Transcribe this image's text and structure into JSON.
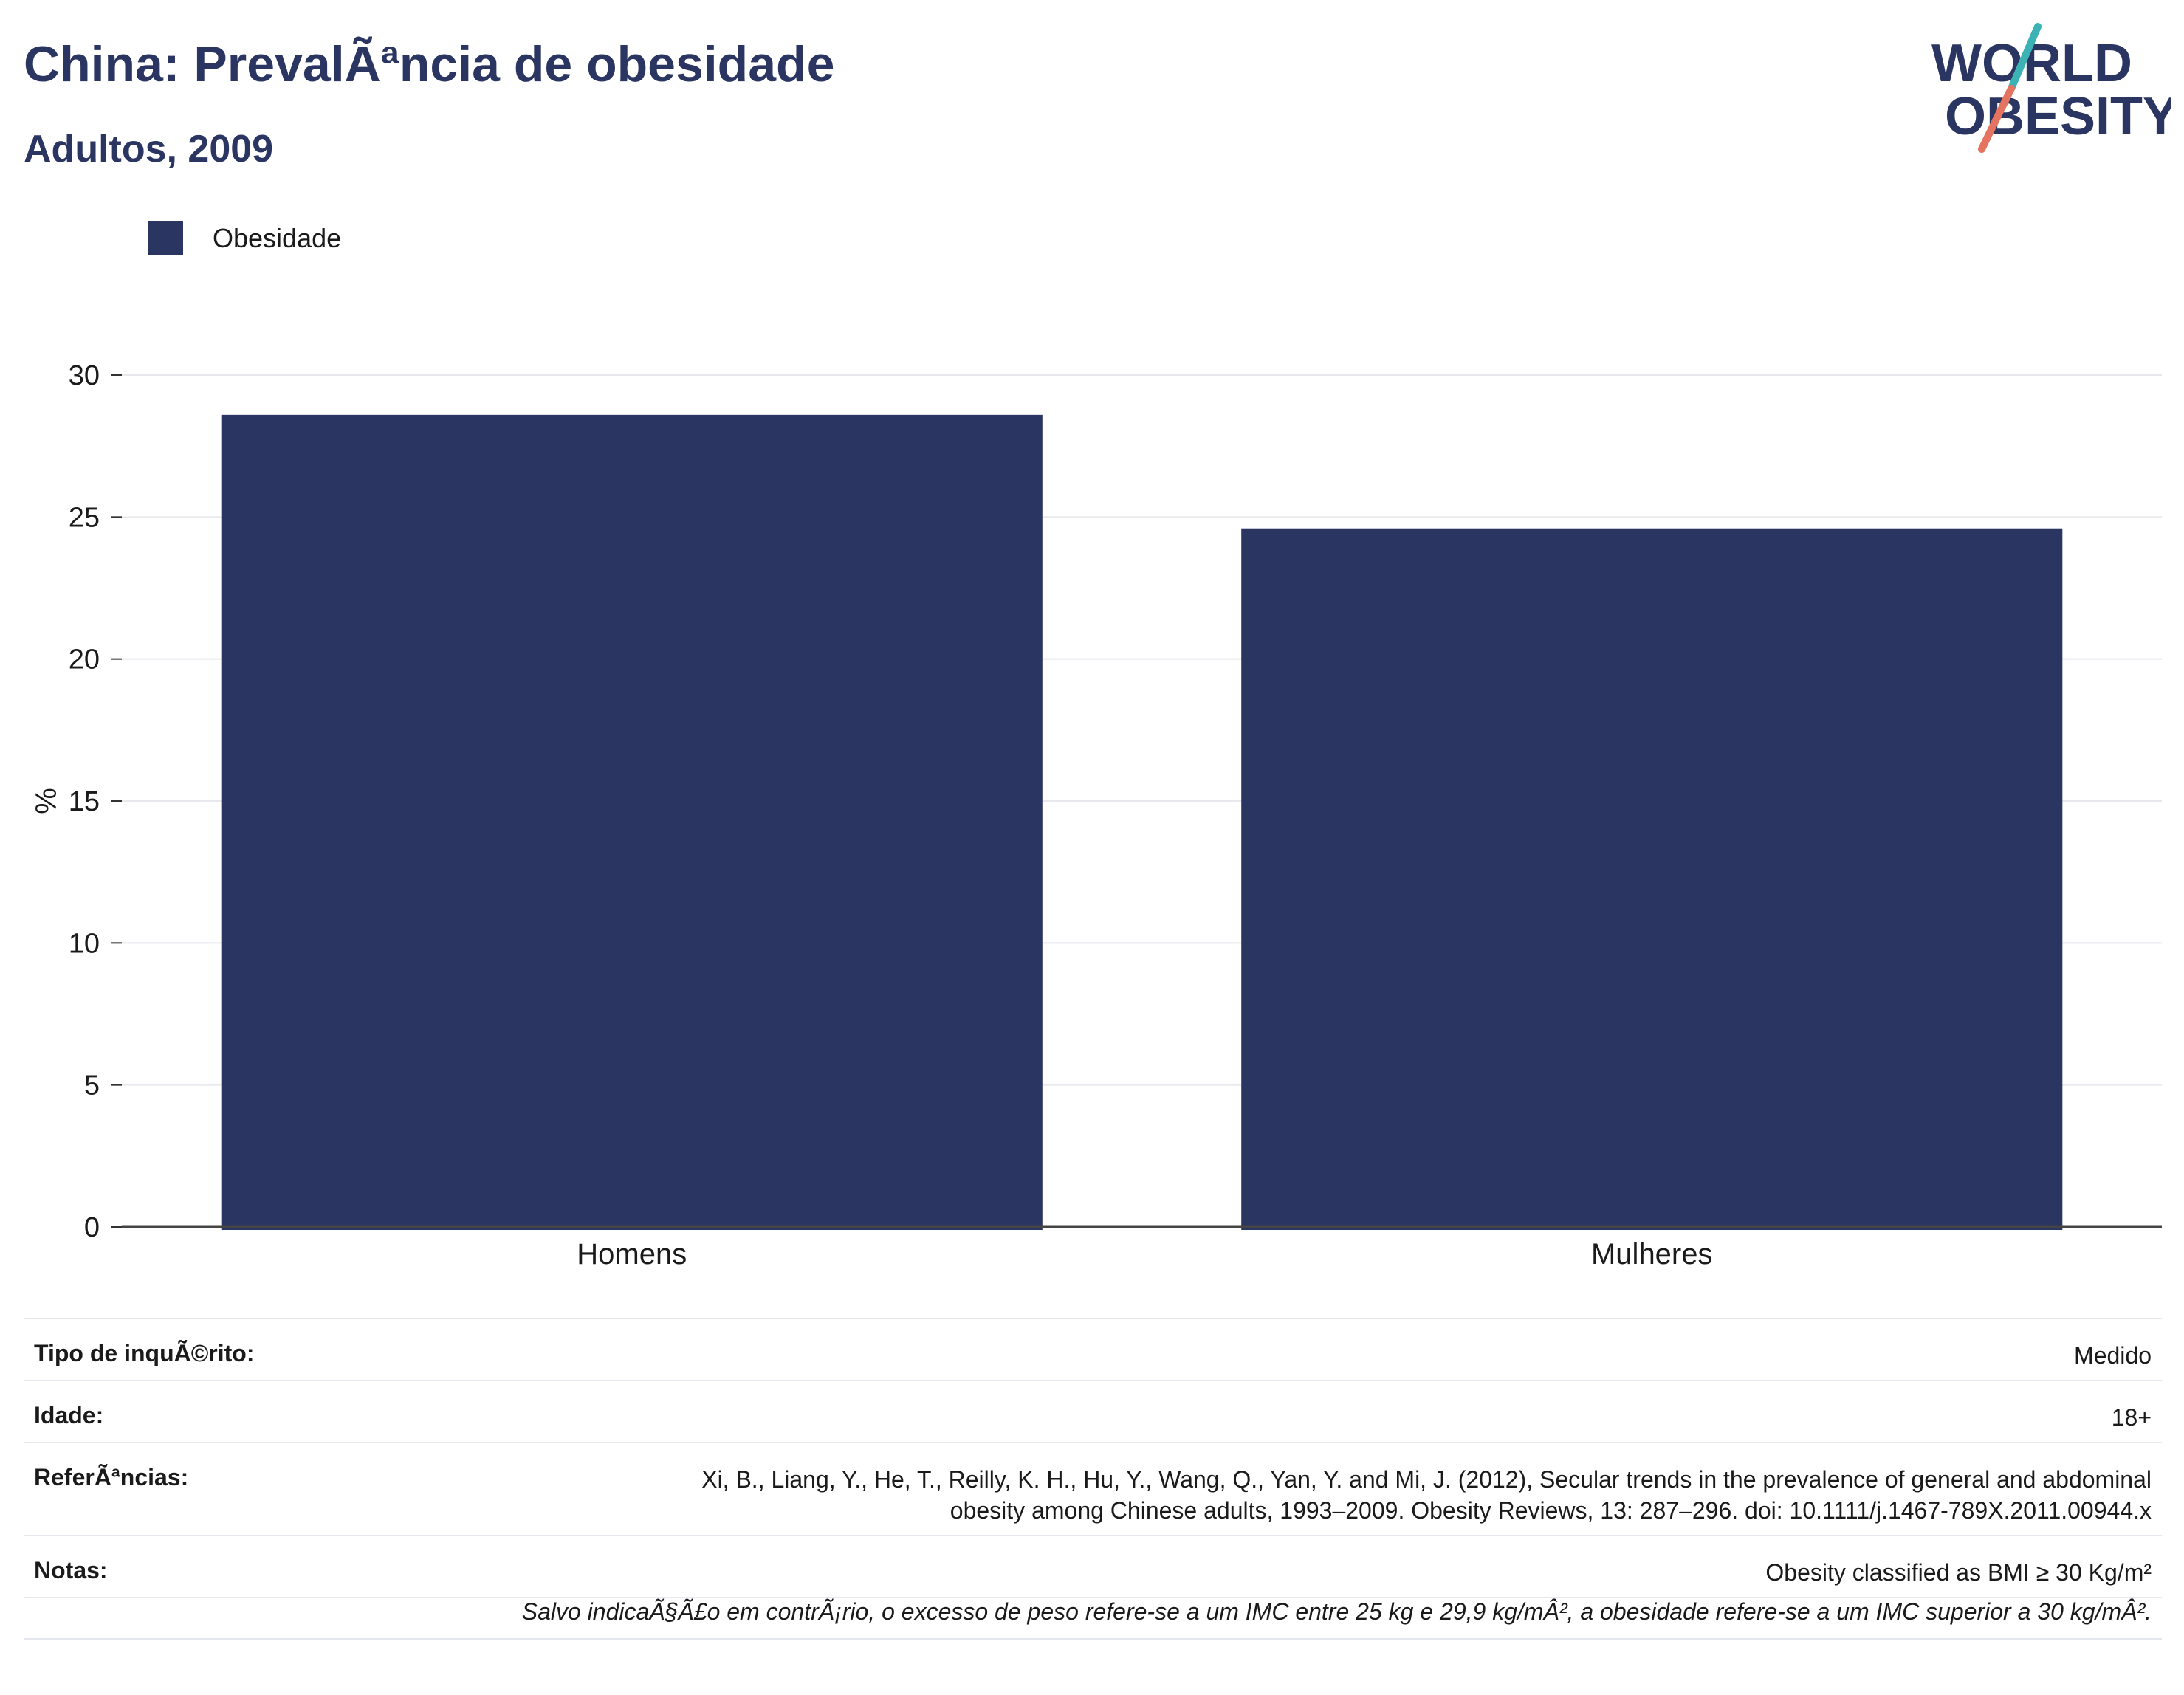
{
  "header": {
    "title": "China: PrevalÃªncia de obesidade",
    "subtitle": "Adultos, 2009"
  },
  "logo": {
    "line1": "WORLD",
    "line2": "OBESITY",
    "colors": {
      "text": "#2b3562",
      "slash_teal": "#3bb3b5",
      "slash_coral": "#e4735f"
    }
  },
  "chart_data": {
    "type": "bar",
    "categories": [
      "Homens",
      "Mulheres"
    ],
    "series": [
      {
        "name": "Obesidade",
        "values": [
          28.6,
          24.6
        ],
        "color": "#2b3562"
      }
    ],
    "xlabel": "",
    "ylabel": "%",
    "ylim": [
      0,
      30
    ],
    "yticks": [
      0,
      5,
      10,
      15,
      20,
      25,
      30
    ],
    "grid": true,
    "legend": "top-left"
  },
  "info": {
    "survey_type": {
      "label": "Tipo de inquÃ©rito:",
      "value": "Medido"
    },
    "age": {
      "label": "Idade:",
      "value": "18+"
    },
    "references": {
      "label": "ReferÃªncias:",
      "line1": "Xi, B., Liang, Y., He, T., Reilly, K. H., Hu, Y., Wang, Q., Yan, Y. and Mi, J. (2012), Secular trends in the prevalence of general and abdominal",
      "line2": "obesity among Chinese adults, 1993–2009. Obesity Reviews, 13: 287–296. doi: 10.1111/j.1467-789X.2011.00944.x"
    },
    "notes": {
      "label": "Notas:",
      "value": "Obesity classified as BMI ≥ 30 Kg/m²"
    },
    "footnote": "Salvo indicaÃ§Ã£o em contrÃ¡rio, o excesso de peso refere-se a um IMC entre 25 kg e 29,9 kg/mÂ², a obesidade refere-se a um IMC superior a 30 kg/mÂ²."
  }
}
